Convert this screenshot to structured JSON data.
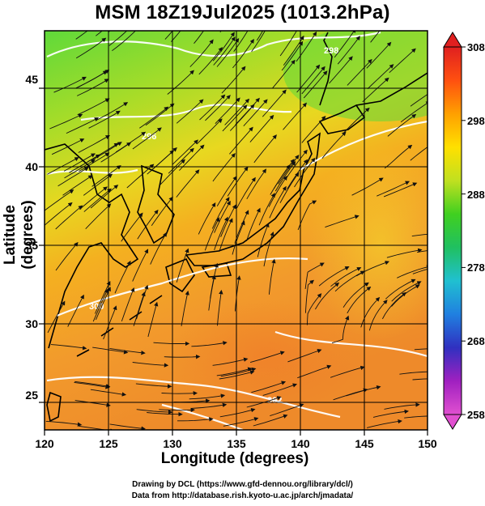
{
  "title": "MSM 18Z19Jul2025 (1013.2hPa)",
  "axes": {
    "x_label": "Longitude (degrees)",
    "y_label": "Latitude  (degrees)",
    "x_range": [
      120,
      150
    ],
    "y_range": [
      22.4,
      47.6
    ],
    "x_ticks": [
      "120",
      "125",
      "130",
      "135",
      "140",
      "145",
      "150"
    ],
    "y_ticks": [
      "25",
      "30",
      "35",
      "40",
      "45"
    ]
  },
  "colorbar": {
    "range": [
      258,
      308
    ],
    "ticks": [
      "258",
      "268",
      "278",
      "288",
      "298",
      "308"
    ],
    "colors": [
      "#e050d0",
      "#a020c0",
      "#3030c0",
      "#2080e0",
      "#20c0d0",
      "#20c060",
      "#40d020",
      "#c0e020",
      "#ffe000",
      "#ffa000",
      "#ff5010",
      "#e02020"
    ]
  },
  "contour_labels": [
    "296",
    "298",
    "300",
    "302"
  ],
  "credits": {
    "line1": "Drawing by DCL (https://www.gfd-dennou.org/library/dcl/)",
    "line2": "Data from http://database.rish.kyoto-u.ac.jp/arch/jmadata/"
  }
}
